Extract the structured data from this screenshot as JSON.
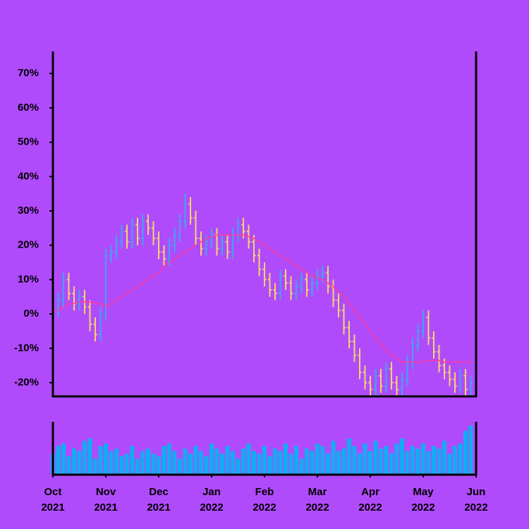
{
  "chart_data": {
    "type": "ohlc",
    "x": [
      0,
      1,
      2,
      3,
      4,
      5,
      6,
      7,
      8,
      9,
      10,
      11,
      12,
      13,
      14,
      15,
      16,
      17,
      18,
      19,
      20,
      21,
      22,
      23,
      24,
      25,
      26,
      27,
      28,
      29,
      30,
      31,
      32,
      33,
      34,
      35,
      36,
      37,
      38,
      39,
      40,
      41,
      42,
      43,
      44,
      45,
      46,
      47,
      48,
      49,
      50,
      51,
      52,
      53,
      54,
      55,
      56,
      57,
      58,
      59,
      60,
      61,
      62,
      63,
      64,
      65,
      66,
      67,
      68,
      69,
      70,
      71,
      72,
      73,
      74,
      75,
      76,
      77,
      78,
      79
    ],
    "open": [
      0,
      1,
      4,
      10,
      6,
      3,
      5,
      2,
      -3,
      -6,
      0,
      17,
      18,
      21,
      24,
      21,
      26,
      22,
      27,
      25,
      22,
      18,
      16,
      20,
      23,
      27,
      32,
      28,
      22,
      19,
      21,
      23,
      19,
      21,
      18,
      23,
      26,
      24,
      21,
      17,
      13,
      10,
      7,
      6,
      11,
      9,
      6,
      8,
      10,
      7,
      9,
      11,
      12,
      8,
      4,
      1,
      -4,
      -8,
      -12,
      -17,
      -20,
      -22,
      -18,
      -21,
      -16,
      -20,
      -22,
      -19,
      -14,
      -9,
      -5,
      -1,
      -7,
      -11,
      -15,
      -17,
      -19,
      -21,
      -18,
      -22
    ],
    "high": [
      3,
      6,
      12,
      12,
      8,
      7,
      7,
      4,
      -1,
      2,
      19,
      20,
      23,
      26,
      26,
      28,
      28,
      29,
      29,
      27,
      24,
      20,
      22,
      25,
      29,
      35,
      34,
      30,
      24,
      23,
      25,
      25,
      23,
      23,
      25,
      28,
      28,
      26,
      23,
      19,
      15,
      12,
      9,
      13,
      13,
      11,
      10,
      12,
      12,
      11,
      13,
      14,
      14,
      10,
      6,
      3,
      -2,
      -6,
      -10,
      -15,
      -18,
      -16,
      -16,
      -14,
      -14,
      -18,
      -17,
      -12,
      -7,
      -3,
      1,
      1,
      -5,
      -9,
      -13,
      -15,
      -17,
      -16,
      -16,
      -18
    ],
    "low": [
      -2,
      -1,
      2,
      4,
      1,
      1,
      0,
      -5,
      -8,
      -8,
      -2,
      15,
      16,
      19,
      19,
      19,
      20,
      20,
      23,
      20,
      16,
      14,
      14,
      18,
      21,
      25,
      26,
      20,
      17,
      17,
      19,
      17,
      17,
      16,
      16,
      21,
      22,
      19,
      15,
      11,
      8,
      5,
      4,
      4,
      7,
      4,
      4,
      6,
      5,
      5,
      7,
      9,
      6,
      2,
      -1,
      -6,
      -10,
      -14,
      -19,
      -22,
      -24,
      -24,
      -23,
      -23,
      -22,
      -24,
      -24,
      -21,
      -16,
      -11,
      -7,
      -9,
      -13,
      -17,
      -19,
      -21,
      -23,
      -23,
      -24,
      -24
    ],
    "close": [
      1,
      4,
      10,
      6,
      3,
      5,
      2,
      -3,
      -6,
      0,
      17,
      18,
      21,
      24,
      21,
      26,
      22,
      27,
      25,
      22,
      18,
      16,
      20,
      23,
      27,
      32,
      28,
      22,
      19,
      21,
      23,
      19,
      21,
      18,
      23,
      26,
      24,
      21,
      17,
      13,
      10,
      7,
      6,
      11,
      9,
      6,
      8,
      10,
      7,
      9,
      11,
      12,
      8,
      4,
      1,
      -4,
      -8,
      -12,
      -17,
      -20,
      -22,
      -18,
      -21,
      -16,
      -20,
      -22,
      -19,
      -14,
      -9,
      -5,
      -1,
      -7,
      -11,
      -15,
      -17,
      -19,
      -21,
      -18,
      -22,
      -20
    ],
    "moving_average": [
      1,
      1,
      2,
      3,
      3,
      3.5,
      3.5,
      3.5,
      3,
      3,
      2,
      3,
      4,
      5,
      6,
      7,
      8,
      9,
      10,
      11,
      12,
      14,
      15,
      16,
      17,
      18,
      19,
      20,
      21,
      22,
      22.5,
      23,
      23,
      23,
      23,
      23,
      23,
      22.5,
      22,
      21,
      20,
      19,
      18,
      17,
      16,
      15,
      14,
      13,
      12,
      11,
      10.5,
      10,
      9,
      8,
      6.5,
      5,
      3,
      1,
      -1,
      -3,
      -5,
      -7,
      -9,
      -10.5,
      -12,
      -13,
      -14,
      -14,
      -14,
      -14,
      -14,
      -13.5,
      -13.5,
      -13.5,
      -14,
      -14,
      -14,
      -14,
      -14,
      -14
    ],
    "volume": [
      40,
      55,
      60,
      35,
      50,
      45,
      65,
      70,
      30,
      55,
      60,
      45,
      50,
      35,
      40,
      55,
      30,
      45,
      50,
      40,
      35,
      55,
      60,
      45,
      30,
      50,
      40,
      55,
      45,
      35,
      60,
      50,
      40,
      55,
      45,
      30,
      50,
      60,
      45,
      40,
      55,
      35,
      50,
      45,
      60,
      40,
      55,
      30,
      50,
      45,
      60,
      55,
      40,
      65,
      45,
      50,
      70,
      55,
      40,
      60,
      45,
      65,
      50,
      55,
      40,
      60,
      70,
      45,
      55,
      50,
      60,
      45,
      55,
      50,
      65,
      40,
      55,
      60,
      85,
      95
    ],
    "up_color": "#3fa4f2",
    "down_color": "#f5d26c",
    "ma_color": "#ff3a9c",
    "volume_color": "#11adf2",
    "xlim": [
      0,
      80
    ],
    "xticks": [
      {
        "value": 0,
        "label": "Oct 2021"
      },
      {
        "value": 10,
        "label": "Nov 2021"
      },
      {
        "value": 20,
        "label": "Dec 2021"
      },
      {
        "value": 30,
        "label": "Jan 2022"
      },
      {
        "value": 40,
        "label": "Feb 2022"
      },
      {
        "value": 50,
        "label": "Mar 2022"
      },
      {
        "value": 60,
        "label": "Apr 2022"
      },
      {
        "value": 70,
        "label": "May 2022"
      },
      {
        "value": 80,
        "label": "Jun 2022"
      }
    ],
    "ylim": [
      -24,
      76
    ],
    "yticks": [
      {
        "value": -20,
        "label": "-20%"
      },
      {
        "value": -10,
        "label": "-10%"
      },
      {
        "value": 0,
        "label": "0%"
      },
      {
        "value": 10,
        "label": "10%"
      },
      {
        "value": 20,
        "label": "20%"
      },
      {
        "value": 30,
        "label": "30%"
      },
      {
        "value": 40,
        "label": "40%"
      },
      {
        "value": 50,
        "label": "50%"
      },
      {
        "value": 60,
        "label": "60%"
      },
      {
        "value": 70,
        "label": "70%"
      }
    ],
    "volume_lim": [
      0,
      100
    ]
  }
}
